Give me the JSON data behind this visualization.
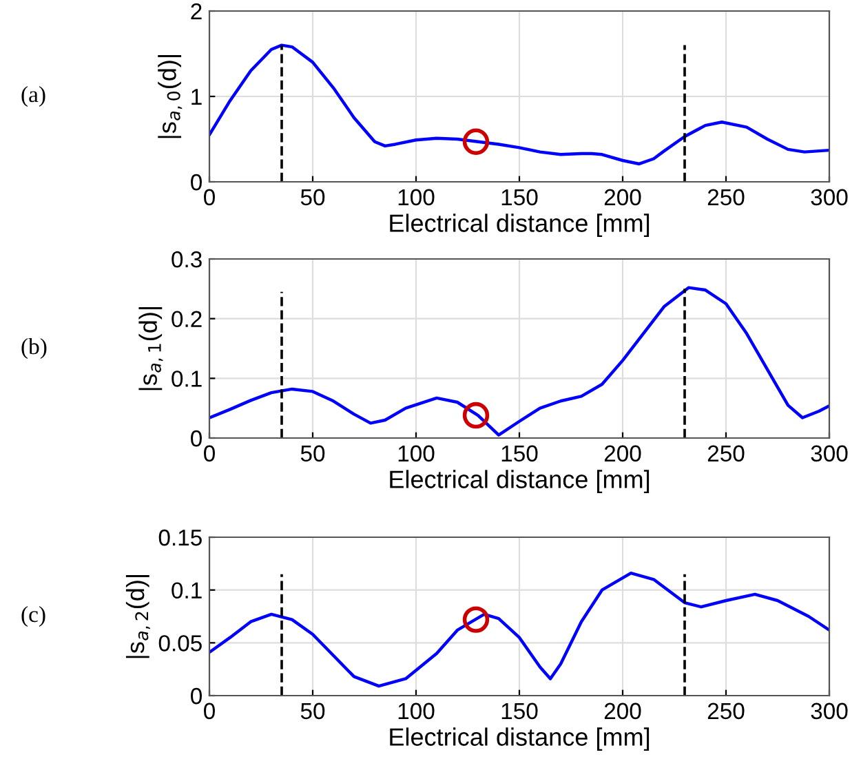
{
  "chart_data": [
    {
      "type": "line",
      "ylabel": "|s$_{a,0}$(d)|",
      "xlabel": "Electrical distance [mm]",
      "annotations": [
        "(a)"
      ],
      "xlim": [
        0,
        300
      ],
      "xticks": [
        0,
        50,
        100,
        150,
        200,
        250,
        300
      ],
      "ylim": [
        0,
        2
      ],
      "yticks": [
        0,
        1,
        2
      ],
      "grid": true,
      "series": [
        {
          "color": "#0000ff",
          "x": [
            0,
            10,
            20,
            30,
            35,
            40,
            50,
            60,
            70,
            80,
            85,
            90,
            100,
            110,
            120,
            130,
            140,
            150,
            160,
            170,
            180,
            185,
            190,
            200,
            208,
            215,
            220,
            230,
            240,
            248,
            260,
            270,
            280,
            288,
            300
          ],
          "values": [
            0.55,
            0.95,
            1.3,
            1.55,
            1.6,
            1.58,
            1.4,
            1.1,
            0.75,
            0.47,
            0.42,
            0.44,
            0.49,
            0.51,
            0.5,
            0.47,
            0.44,
            0.4,
            0.35,
            0.32,
            0.33,
            0.33,
            0.32,
            0.25,
            0.21,
            0.27,
            0.36,
            0.53,
            0.66,
            0.7,
            0.64,
            0.5,
            0.38,
            0.35,
            0.37
          ]
        },
        {
          "color": "#000000",
          "line_style": "dashed",
          "x": [
            35,
            35
          ],
          "values": [
            0,
            1.6
          ]
        },
        {
          "color": "#000000",
          "line_style": "dashed",
          "x": [
            230,
            230
          ],
          "values": [
            0,
            1.6
          ]
        },
        {
          "type": "scatter",
          "color": "#cc0000",
          "marker": "circle",
          "x": [
            129
          ],
          "values": [
            0.47
          ]
        }
      ]
    },
    {
      "type": "line",
      "ylabel": "|s$_{a,1}$(d)|",
      "xlabel": "Electrical distance [mm]",
      "annotations": [
        "(b)"
      ],
      "xlim": [
        0,
        300
      ],
      "xticks": [
        0,
        50,
        100,
        150,
        200,
        250,
        300
      ],
      "ylim": [
        0,
        0.3
      ],
      "yticks": [
        0,
        0.1,
        0.2,
        0.3
      ],
      "grid": true,
      "series": [
        {
          "color": "#0000ff",
          "x": [
            0,
            10,
            20,
            30,
            40,
            50,
            60,
            70,
            78,
            85,
            95,
            110,
            120,
            130,
            140,
            150,
            160,
            170,
            180,
            190,
            200,
            210,
            220,
            232,
            240,
            250,
            260,
            270,
            280,
            287,
            295,
            300
          ],
          "values": [
            0.034,
            0.048,
            0.063,
            0.076,
            0.082,
            0.078,
            0.062,
            0.04,
            0.025,
            0.03,
            0.05,
            0.067,
            0.06,
            0.038,
            0.005,
            0.028,
            0.05,
            0.062,
            0.07,
            0.09,
            0.13,
            0.175,
            0.22,
            0.252,
            0.248,
            0.225,
            0.175,
            0.115,
            0.055,
            0.034,
            0.045,
            0.054
          ]
        },
        {
          "color": "#000000",
          "line_style": "dashed",
          "x": [
            35,
            35
          ],
          "values": [
            0,
            0.245
          ]
        },
        {
          "color": "#000000",
          "line_style": "dashed",
          "x": [
            230,
            230
          ],
          "values": [
            0,
            0.25
          ]
        },
        {
          "type": "scatter",
          "color": "#cc0000",
          "marker": "circle",
          "x": [
            129
          ],
          "values": [
            0.038
          ]
        }
      ]
    },
    {
      "type": "line",
      "ylabel": "|s$_{a,2}$(d)|",
      "xlabel": "Electrical distance [mm]",
      "annotations": [
        "(c)"
      ],
      "xlim": [
        0,
        300
      ],
      "xticks": [
        0,
        50,
        100,
        150,
        200,
        250,
        300
      ],
      "ylim": [
        0,
        0.15
      ],
      "yticks": [
        0,
        0.05,
        0.1,
        0.15
      ],
      "grid": true,
      "series": [
        {
          "color": "#0000ff",
          "x": [
            0,
            10,
            20,
            30,
            40,
            50,
            60,
            70,
            82,
            95,
            110,
            120,
            133,
            140,
            150,
            160,
            165,
            170,
            180,
            190,
            204,
            215,
            230,
            238,
            250,
            264,
            275,
            290,
            300
          ],
          "values": [
            0.041,
            0.055,
            0.07,
            0.077,
            0.072,
            0.058,
            0.038,
            0.018,
            0.009,
            0.016,
            0.04,
            0.062,
            0.077,
            0.073,
            0.055,
            0.027,
            0.016,
            0.03,
            0.07,
            0.1,
            0.116,
            0.11,
            0.088,
            0.084,
            0.09,
            0.096,
            0.09,
            0.075,
            0.062
          ]
        },
        {
          "color": "#000000",
          "line_style": "dashed",
          "x": [
            35,
            35
          ],
          "values": [
            0,
            0.115
          ]
        },
        {
          "color": "#000000",
          "line_style": "dashed",
          "x": [
            230,
            230
          ],
          "values": [
            0,
            0.115
          ]
        },
        {
          "type": "scatter",
          "color": "#cc0000",
          "marker": "circle",
          "x": [
            129
          ],
          "values": [
            0.072
          ]
        }
      ]
    }
  ]
}
